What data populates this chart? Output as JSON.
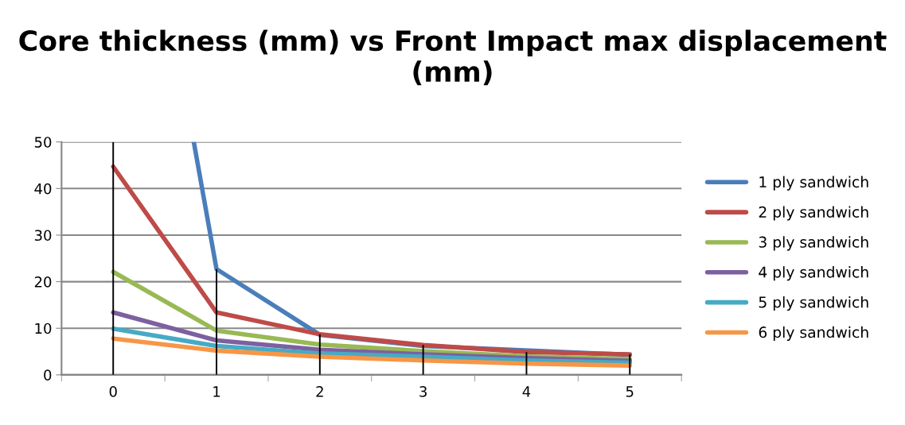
{
  "chart_data": {
    "type": "line",
    "title": "Core thickness (mm) vs Front Impact max displacement (mm)",
    "x": [
      0,
      1,
      2,
      3,
      4,
      5
    ],
    "series": [
      {
        "type": "bar",
        "color": "#000000",
        "values": [
          50,
          22.7,
          8.7,
          6.4,
          4.9,
          4.4
        ]
      },
      {
        "name": "1 ply sandwich",
        "color": "#4a7ebb",
        "x": [
          0.78,
          1,
          2,
          3,
          4,
          5
        ],
        "values": [
          50,
          22.7,
          8.6,
          6.2,
          null,
          4.3
        ]
      },
      {
        "name": "2 ply sandwich",
        "color": "#be4b48",
        "values": [
          44.7,
          13.4,
          8.7,
          6.4,
          4.9,
          4.4
        ]
      },
      {
        "name": "3 ply sandwich",
        "color": "#98b954",
        "values": [
          22.1,
          9.5,
          6.5,
          5.1,
          4.0,
          3.4
        ]
      },
      {
        "name": "4 ply sandwich",
        "color": "#7d60a0",
        "values": [
          13.4,
          7.4,
          5.4,
          4.4,
          3.6,
          3.0
        ]
      },
      {
        "name": "5 ply sandwich",
        "color": "#46aac5",
        "values": [
          9.9,
          6.2,
          4.6,
          3.9,
          3.1,
          2.6
        ]
      },
      {
        "name": "6 ply sandwich",
        "color": "#f79646",
        "values": [
          7.8,
          5.2,
          3.9,
          3.1,
          2.4,
          2.0
        ]
      }
    ],
    "xlim": [
      -0.5,
      5.5
    ],
    "xticks": [
      0,
      1,
      2,
      3,
      4,
      5
    ],
    "ylim": [
      0,
      50
    ],
    "yticks": [
      0,
      10,
      20,
      30,
      40,
      50
    ],
    "grid": "y",
    "legend": "right",
    "marker": "none",
    "line_style": "solid"
  }
}
